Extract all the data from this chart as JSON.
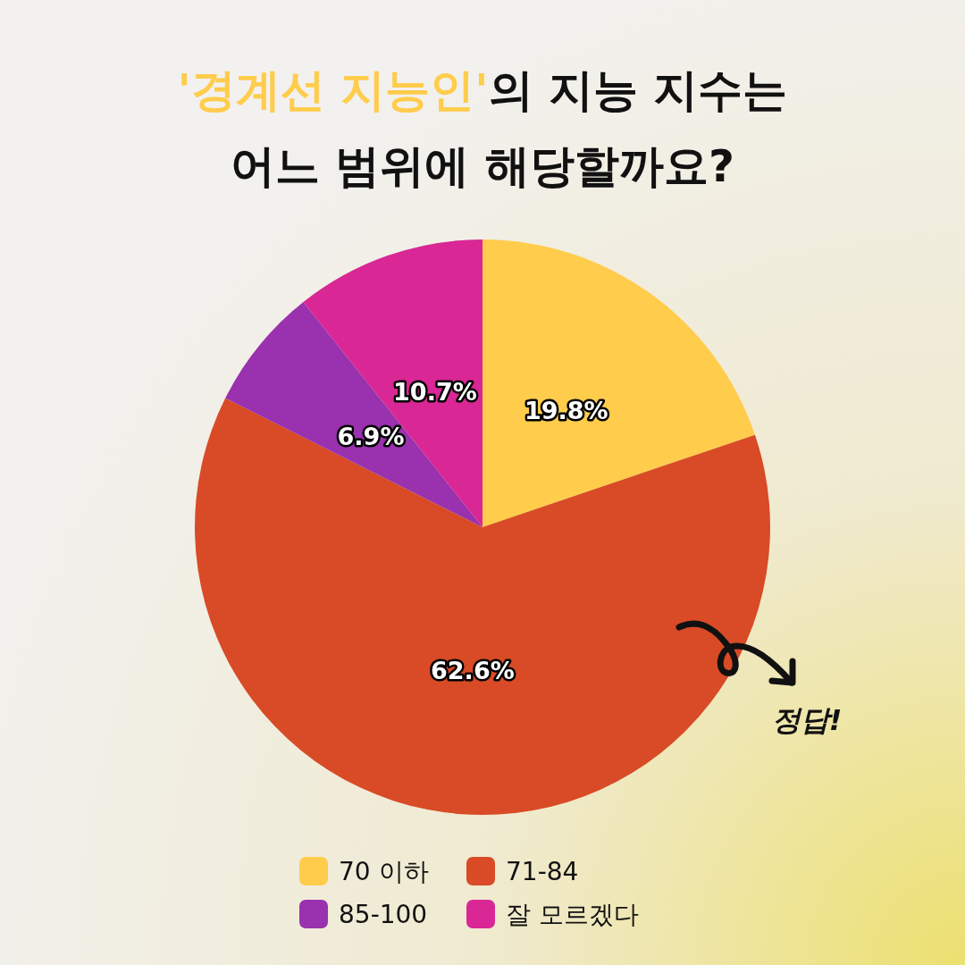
{
  "chart_data": {
    "type": "pie",
    "title": "'경계선 지능인'의 지능 지수는\n어느 범위에 해당할까요?",
    "categories": [
      "70 이하",
      "71-84",
      "85-100",
      "잘 모르겠다"
    ],
    "values": [
      19.8,
      62.6,
      6.9,
      10.7
    ],
    "colors": [
      "#ffcc4c",
      "#d84b26",
      "#9a31ae",
      "#d92795"
    ],
    "value_labels": [
      "19.8%",
      "62.6%",
      "6.9%",
      "10.7%"
    ],
    "annotations": [
      "정답!"
    ],
    "legend": "bottom"
  }
}
